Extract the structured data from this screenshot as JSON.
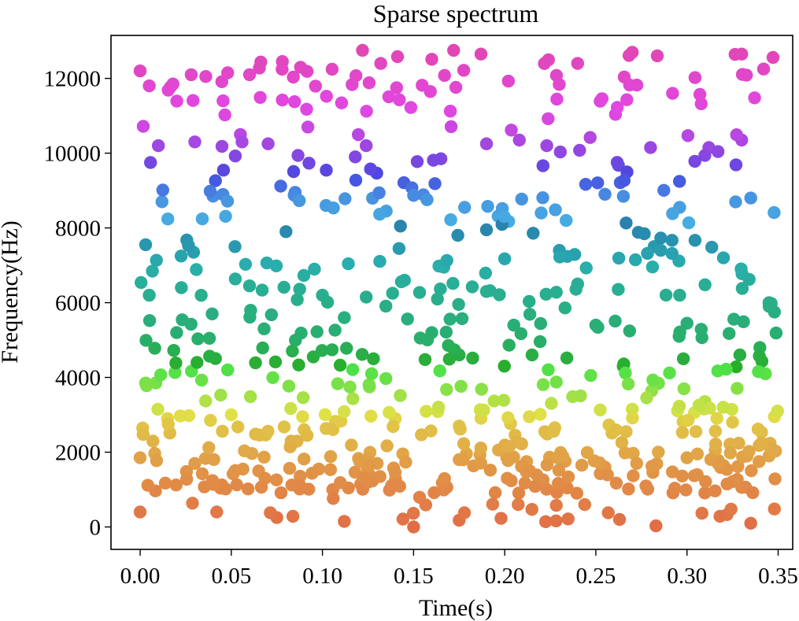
{
  "chart_data": {
    "type": "scatter",
    "title": "Sparse spectrum",
    "xlabel": "Time(s)",
    "ylabel": "Frequency(Hz)",
    "xlim": [
      -0.016,
      0.358
    ],
    "ylim": [
      -600,
      13150
    ],
    "x_ticks": [
      0.0,
      0.05,
      0.1,
      0.15,
      0.2,
      0.25,
      0.3,
      0.35
    ],
    "x_tick_labels": [
      "0.00",
      "0.05",
      "0.10",
      "0.15",
      "0.20",
      "0.25",
      "0.30",
      "0.35"
    ],
    "y_ticks": [
      0,
      2000,
      4000,
      6000,
      8000,
      10000,
      12000
    ],
    "y_tick_labels": [
      "0",
      "2000",
      "4000",
      "6000",
      "8000",
      "10000",
      "12000"
    ],
    "grid": false,
    "colormap": "husl hue mapped from frequency (orange at 0 Hz → green → teal → blue → purple → pink at ~12800 Hz)",
    "num_points": 700,
    "time_range": [
      0.0,
      0.35
    ],
    "frequency_range": [
      0,
      12800
    ],
    "points": [
      {
        "x": 0.0,
        "y": 12200
      },
      {
        "x": 0.005,
        "y": 11800
      },
      {
        "x": 0.018,
        "y": 11850
      },
      {
        "x": 0.028,
        "y": 12100
      },
      {
        "x": 0.036,
        "y": 12050
      },
      {
        "x": 0.048,
        "y": 12150
      },
      {
        "x": 0.06,
        "y": 12100
      },
      {
        "x": 0.078,
        "y": 12450
      },
      {
        "x": 0.088,
        "y": 12300
      },
      {
        "x": 0.122,
        "y": 12750
      },
      {
        "x": 0.132,
        "y": 12400
      },
      {
        "x": 0.172,
        "y": 12750
      },
      {
        "x": 0.187,
        "y": 12650
      },
      {
        "x": 0.224,
        "y": 12500
      },
      {
        "x": 0.24,
        "y": 12400
      },
      {
        "x": 0.27,
        "y": 12700
      },
      {
        "x": 0.33,
        "y": 12650
      },
      {
        "x": 0.342,
        "y": 12250
      },
      {
        "x": 0.01,
        "y": 10200
      },
      {
        "x": 0.03,
        "y": 10300
      },
      {
        "x": 0.055,
        "y": 10500
      },
      {
        "x": 0.092,
        "y": 10700
      },
      {
        "x": 0.124,
        "y": 10200
      },
      {
        "x": 0.165,
        "y": 9850
      },
      {
        "x": 0.19,
        "y": 10250
      },
      {
        "x": 0.208,
        "y": 10350
      },
      {
        "x": 0.28,
        "y": 10150
      },
      {
        "x": 0.312,
        "y": 10150
      },
      {
        "x": 0.33,
        "y": 10350
      },
      {
        "x": 0.012,
        "y": 8700
      },
      {
        "x": 0.04,
        "y": 8850
      },
      {
        "x": 0.085,
        "y": 8950
      },
      {
        "x": 0.102,
        "y": 8600
      },
      {
        "x": 0.135,
        "y": 8450
      },
      {
        "x": 0.178,
        "y": 8550
      },
      {
        "x": 0.22,
        "y": 8400
      },
      {
        "x": 0.255,
        "y": 8900
      },
      {
        "x": 0.296,
        "y": 8550
      },
      {
        "x": 0.335,
        "y": 8800
      },
      {
        "x": 0.003,
        "y": 7550
      },
      {
        "x": 0.052,
        "y": 7500
      },
      {
        "x": 0.08,
        "y": 7900
      },
      {
        "x": 0.142,
        "y": 7450
      },
      {
        "x": 0.19,
        "y": 7950
      },
      {
        "x": 0.23,
        "y": 7400
      },
      {
        "x": 0.282,
        "y": 7500
      },
      {
        "x": 0.32,
        "y": 7200
      },
      {
        "x": 0.005,
        "y": 6200
      },
      {
        "x": 0.06,
        "y": 6450
      },
      {
        "x": 0.1,
        "y": 6200
      },
      {
        "x": 0.145,
        "y": 6600
      },
      {
        "x": 0.19,
        "y": 6300
      },
      {
        "x": 0.24,
        "y": 6500
      },
      {
        "x": 0.296,
        "y": 6200
      },
      {
        "x": 0.345,
        "y": 6000
      },
      {
        "x": 0.02,
        "y": 5200
      },
      {
        "x": 0.068,
        "y": 5300
      },
      {
        "x": 0.112,
        "y": 5600
      },
      {
        "x": 0.16,
        "y": 5200
      },
      {
        "x": 0.205,
        "y": 5400
      },
      {
        "x": 0.25,
        "y": 5400
      },
      {
        "x": 0.3,
        "y": 5450
      },
      {
        "x": 0.348,
        "y": 5750
      },
      {
        "x": 0.003,
        "y": 3850
      },
      {
        "x": 0.048,
        "y": 4200
      },
      {
        "x": 0.095,
        "y": 4550
      },
      {
        "x": 0.128,
        "y": 4500
      },
      {
        "x": 0.175,
        "y": 4600
      },
      {
        "x": 0.215,
        "y": 4600
      },
      {
        "x": 0.265,
        "y": 4300
      },
      {
        "x": 0.298,
        "y": 4500
      },
      {
        "x": 0.343,
        "y": 4100
      },
      {
        "x": 0.015,
        "y": 2900
      },
      {
        "x": 0.05,
        "y": 3000
      },
      {
        "x": 0.09,
        "y": 2600
      },
      {
        "x": 0.14,
        "y": 2900
      },
      {
        "x": 0.175,
        "y": 2700
      },
      {
        "x": 0.222,
        "y": 2550
      },
      {
        "x": 0.27,
        "y": 3150
      },
      {
        "x": 0.325,
        "y": 2800
      },
      {
        "x": 0.348,
        "y": 2950
      },
      {
        "x": 0.0,
        "y": 1850
      },
      {
        "x": 0.03,
        "y": 1700
      },
      {
        "x": 0.065,
        "y": 1500
      },
      {
        "x": 0.098,
        "y": 1550
      },
      {
        "x": 0.13,
        "y": 1700
      },
      {
        "x": 0.175,
        "y": 1800
      },
      {
        "x": 0.212,
        "y": 1750
      },
      {
        "x": 0.255,
        "y": 1600
      },
      {
        "x": 0.3,
        "y": 1850
      },
      {
        "x": 0.345,
        "y": 1900
      },
      {
        "x": 0.0,
        "y": 400
      },
      {
        "x": 0.042,
        "y": 400
      },
      {
        "x": 0.075,
        "y": 250
      },
      {
        "x": 0.112,
        "y": 150
      },
      {
        "x": 0.15,
        "y": 0
      },
      {
        "x": 0.175,
        "y": 180
      },
      {
        "x": 0.198,
        "y": 230
      },
      {
        "x": 0.263,
        "y": 200
      },
      {
        "x": 0.283,
        "y": 30
      },
      {
        "x": 0.322,
        "y": 330
      },
      {
        "x": 0.335,
        "y": 100
      },
      {
        "x": 0.348,
        "y": 480
      }
    ]
  }
}
